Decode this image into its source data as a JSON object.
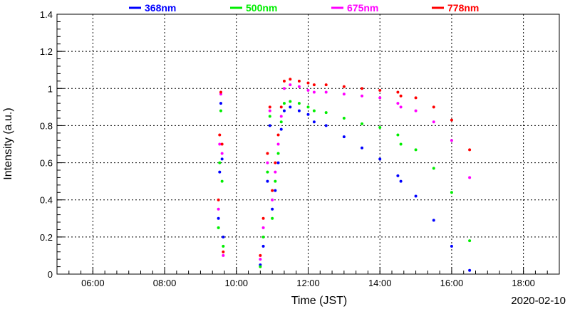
{
  "chart_data": {
    "type": "scatter",
    "title": "",
    "xlabel": "Time (JST)",
    "ylabel": "Intensity (a.u.)",
    "date_label": "2020-02-10",
    "xlim": [
      "05:00",
      "19:00"
    ],
    "ylim": [
      0,
      1.4
    ],
    "x_ticks": [
      "06:00",
      "08:00",
      "10:00",
      "12:00",
      "14:00",
      "16:00",
      "18:00"
    ],
    "y_ticks": [
      "0",
      "0.2",
      "0.4",
      "0.6",
      "0.8",
      "1",
      "1.2",
      "1.4"
    ],
    "grid": true,
    "legend_position": "top",
    "series": [
      {
        "name": "368nm",
        "color": "#0000ff",
        "points": [
          [
            "09:30",
            0.3
          ],
          [
            "09:32",
            0.55
          ],
          [
            "09:34",
            0.92
          ],
          [
            "09:36",
            0.62
          ],
          [
            "09:38",
            0.2
          ],
          [
            "10:40",
            0.05
          ],
          [
            "10:45",
            0.15
          ],
          [
            "10:52",
            0.5
          ],
          [
            "10:56",
            0.8
          ],
          [
            "11:00",
            0.35
          ],
          [
            "11:05",
            0.45
          ],
          [
            "11:10",
            0.6
          ],
          [
            "11:15",
            0.78
          ],
          [
            "11:20",
            0.88
          ],
          [
            "11:30",
            0.9
          ],
          [
            "11:45",
            0.88
          ],
          [
            "12:00",
            0.86
          ],
          [
            "12:10",
            0.82
          ],
          [
            "12:30",
            0.8
          ],
          [
            "13:00",
            0.74
          ],
          [
            "13:30",
            0.68
          ],
          [
            "14:00",
            0.62
          ],
          [
            "14:30",
            0.53
          ],
          [
            "14:35",
            0.5
          ],
          [
            "15:00",
            0.42
          ],
          [
            "15:30",
            0.29
          ],
          [
            "16:00",
            0.15
          ],
          [
            "16:30",
            0.02
          ]
        ]
      },
      {
        "name": "500nm",
        "color": "#00ee00",
        "points": [
          [
            "09:30",
            0.25
          ],
          [
            "09:32",
            0.6
          ],
          [
            "09:34",
            0.88
          ],
          [
            "09:36",
            0.5
          ],
          [
            "09:38",
            0.15
          ],
          [
            "10:40",
            0.04
          ],
          [
            "10:45",
            0.2
          ],
          [
            "10:52",
            0.55
          ],
          [
            "10:56",
            0.85
          ],
          [
            "11:00",
            0.3
          ],
          [
            "11:05",
            0.5
          ],
          [
            "11:10",
            0.65
          ],
          [
            "11:15",
            0.82
          ],
          [
            "11:20",
            0.92
          ],
          [
            "11:30",
            0.93
          ],
          [
            "11:45",
            0.92
          ],
          [
            "12:00",
            0.9
          ],
          [
            "12:10",
            0.88
          ],
          [
            "12:30",
            0.87
          ],
          [
            "13:00",
            0.84
          ],
          [
            "13:30",
            0.81
          ],
          [
            "14:00",
            0.79
          ],
          [
            "14:30",
            0.75
          ],
          [
            "14:35",
            0.7
          ],
          [
            "15:00",
            0.67
          ],
          [
            "15:30",
            0.57
          ],
          [
            "16:00",
            0.44
          ],
          [
            "16:30",
            0.18
          ]
        ]
      },
      {
        "name": "675nm",
        "color": "#ff00ff",
        "points": [
          [
            "09:30",
            0.35
          ],
          [
            "09:32",
            0.7
          ],
          [
            "09:34",
            0.97
          ],
          [
            "09:36",
            0.65
          ],
          [
            "09:38",
            0.1
          ],
          [
            "10:40",
            0.08
          ],
          [
            "10:45",
            0.25
          ],
          [
            "10:52",
            0.6
          ],
          [
            "10:56",
            0.88
          ],
          [
            "11:00",
            0.4
          ],
          [
            "11:05",
            0.55
          ],
          [
            "11:10",
            0.7
          ],
          [
            "11:15",
            0.85
          ],
          [
            "11:20",
            1.0
          ],
          [
            "11:30",
            1.02
          ],
          [
            "11:45",
            1.01
          ],
          [
            "12:00",
            0.99
          ],
          [
            "12:10",
            0.98
          ],
          [
            "12:30",
            0.98
          ],
          [
            "13:00",
            0.97
          ],
          [
            "13:30",
            0.96
          ],
          [
            "14:00",
            0.95
          ],
          [
            "14:30",
            0.92
          ],
          [
            "14:35",
            0.9
          ],
          [
            "15:00",
            0.88
          ],
          [
            "15:30",
            0.82
          ],
          [
            "16:00",
            0.72
          ],
          [
            "16:30",
            0.52
          ]
        ]
      },
      {
        "name": "778nm",
        "color": "#ff0000",
        "points": [
          [
            "09:30",
            0.4
          ],
          [
            "09:32",
            0.75
          ],
          [
            "09:34",
            0.98
          ],
          [
            "09:36",
            0.7
          ],
          [
            "09:38",
            0.12
          ],
          [
            "10:40",
            0.1
          ],
          [
            "10:45",
            0.3
          ],
          [
            "10:52",
            0.65
          ],
          [
            "10:56",
            0.9
          ],
          [
            "11:00",
            0.45
          ],
          [
            "11:05",
            0.6
          ],
          [
            "11:10",
            0.75
          ],
          [
            "11:15",
            0.9
          ],
          [
            "11:20",
            1.04
          ],
          [
            "11:30",
            1.05
          ],
          [
            "11:45",
            1.04
          ],
          [
            "12:00",
            1.03
          ],
          [
            "12:10",
            1.02
          ],
          [
            "12:30",
            1.02
          ],
          [
            "13:00",
            1.01
          ],
          [
            "13:30",
            1.0
          ],
          [
            "14:00",
            0.99
          ],
          [
            "14:30",
            0.98
          ],
          [
            "14:35",
            0.96
          ],
          [
            "15:00",
            0.95
          ],
          [
            "15:30",
            0.9
          ],
          [
            "16:00",
            0.83
          ],
          [
            "16:30",
            0.67
          ]
        ]
      }
    ]
  }
}
